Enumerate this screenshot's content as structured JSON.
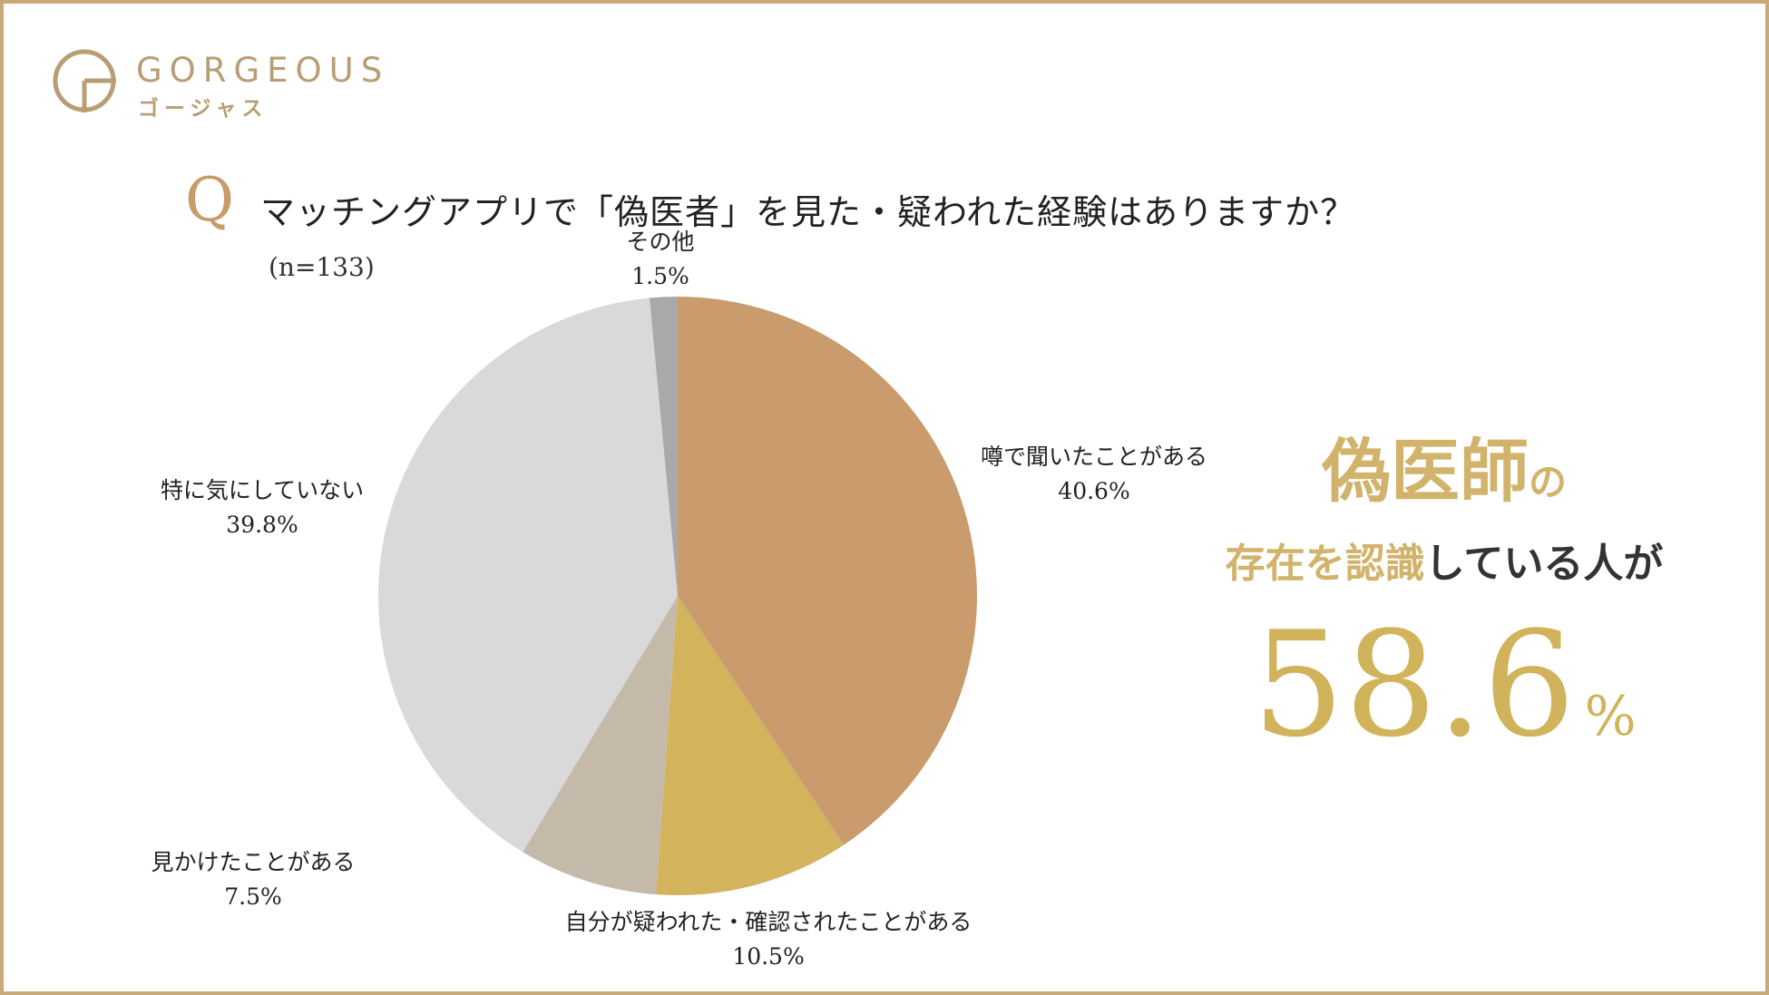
{
  "brand": {
    "logo_text": "GORGEOUS",
    "logo_sub": "ゴージャス",
    "logo_mark_icon": "g-circle-logo-icon",
    "accent_color": "#b79e74"
  },
  "question": {
    "mark": "Q",
    "text": "マッチングアプリで「偽医者」を見た・疑われた経験はありますか？",
    "sample": "(n=133)"
  },
  "chart_data": {
    "type": "pie",
    "title": "マッチングアプリで「偽医者」を見た・疑われた経験はありますか？",
    "n": "(n=133)",
    "slices": [
      {
        "label": "噂で聞いたことがある",
        "value": 40.6,
        "display": "40.6%",
        "color": "#c99b6d"
      },
      {
        "label": "自分が疑われた・確認されたことがある",
        "value": 10.5,
        "display": "10.5%",
        "color": "#d3b35b"
      },
      {
        "label": "見かけたことがある",
        "value": 7.5,
        "display": "7.5%",
        "color": "#c5b9aa"
      },
      {
        "label": "特に気にしていない",
        "value": 39.8,
        "display": "39.8%",
        "color": "#d9d9d9"
      },
      {
        "label": "その他",
        "value": 1.5,
        "display": "1.5%",
        "color": "#a9a9a9"
      }
    ],
    "start_angle": "12 o'clock, clockwise"
  },
  "callout": {
    "line1_main": "偽医師",
    "line1_particle": "の",
    "line2_gold": "存在を認識",
    "line2_dark": "している人が",
    "value": "58.6",
    "unit": "%"
  },
  "colors": {
    "frame": "#c9a87a",
    "gold": "#d1b36b"
  }
}
